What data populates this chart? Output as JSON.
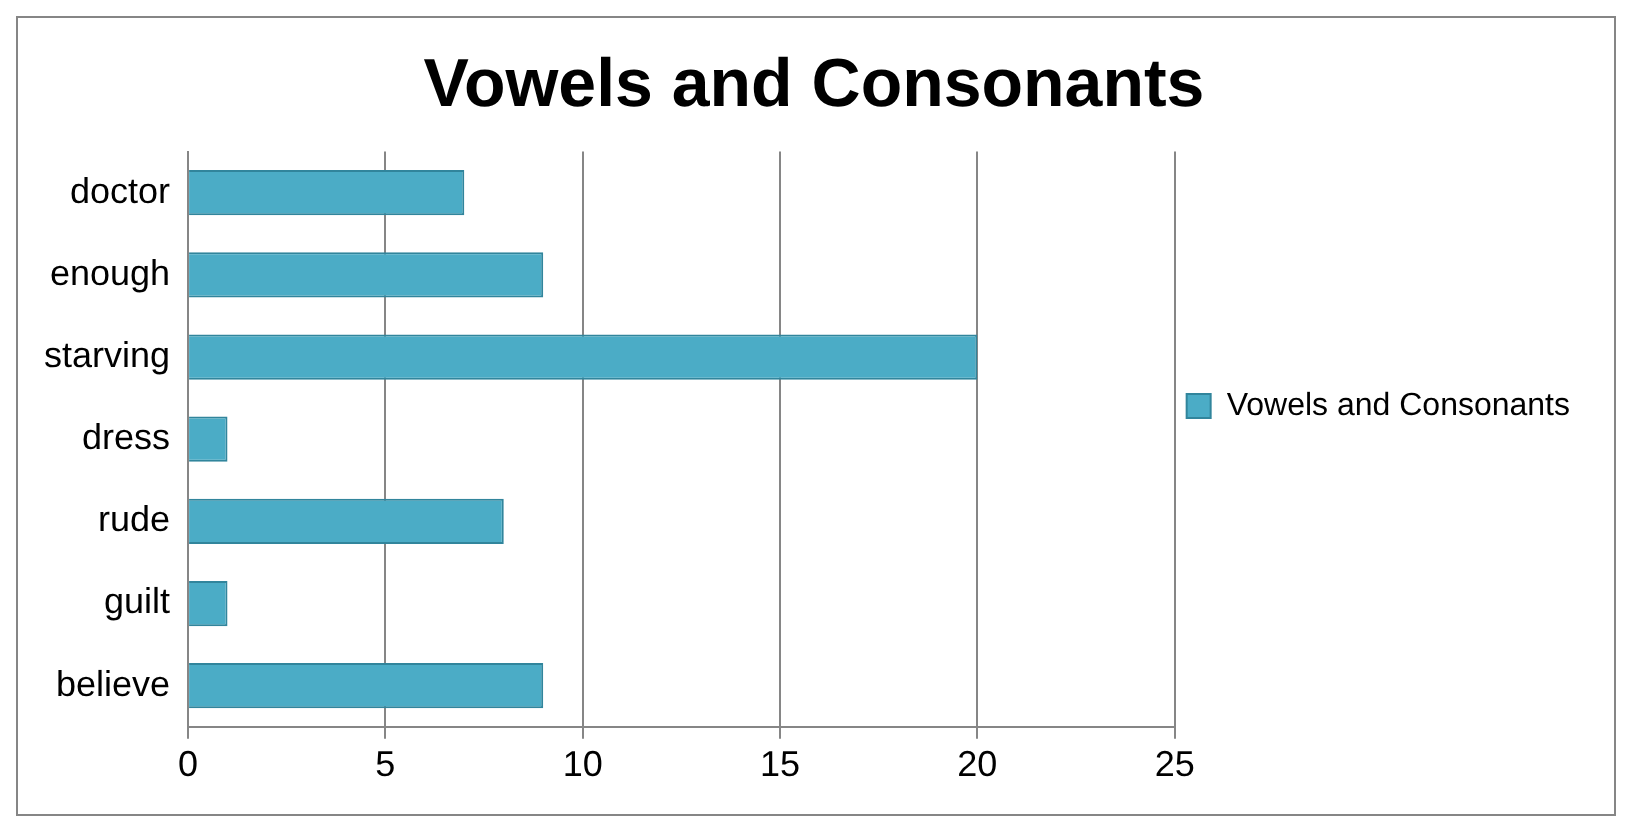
{
  "chart_data": {
    "type": "bar",
    "orientation": "horizontal",
    "title": "Vowels and Consonants",
    "categories": [
      "doctor",
      "enough",
      "starving",
      "dress",
      "rude",
      "guilt",
      "believe"
    ],
    "series": [
      {
        "name": "Vowels and Consonants",
        "color": "#4bacc6",
        "values": [
          7,
          9,
          20,
          1,
          8,
          1,
          9
        ]
      }
    ],
    "xlim": [
      0,
      25
    ],
    "xticks": [
      0,
      5,
      10,
      15,
      20,
      25
    ],
    "grid": "x",
    "legend": "right"
  }
}
